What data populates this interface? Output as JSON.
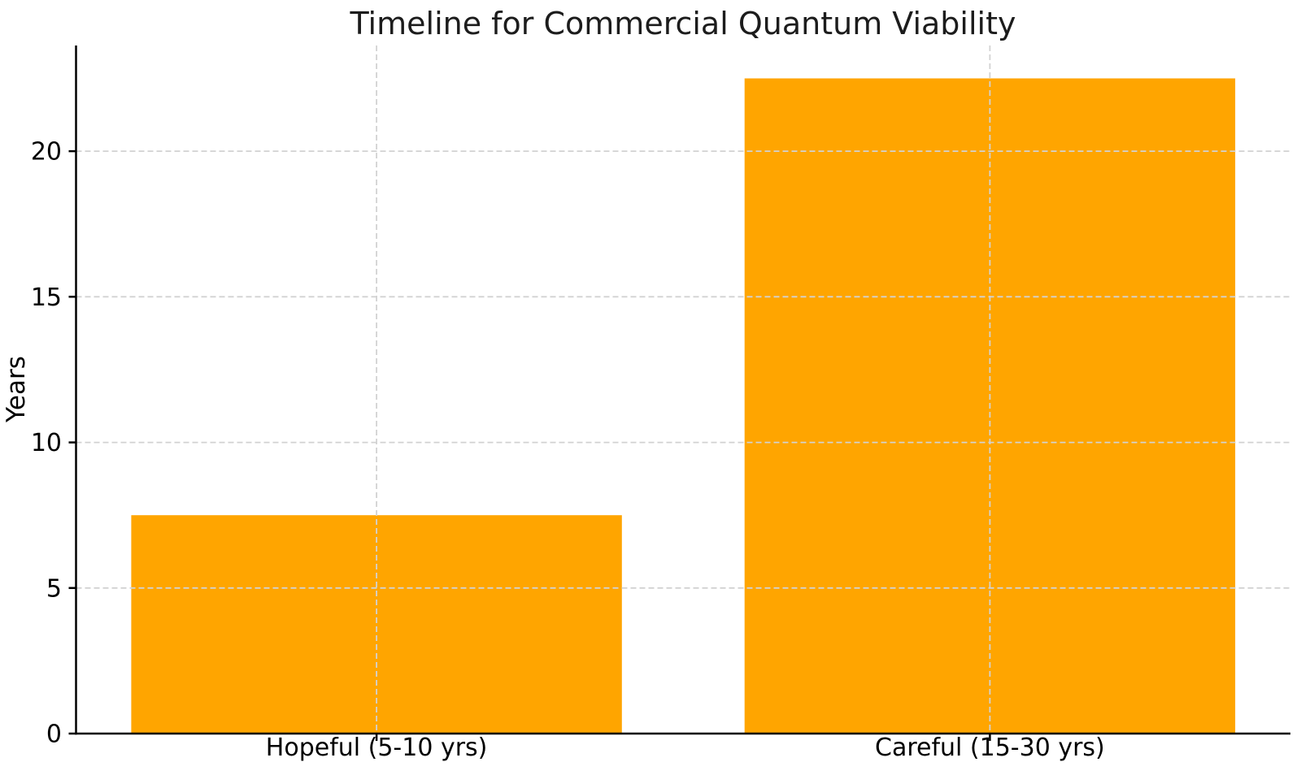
{
  "figure": {
    "background": "#ffffff",
    "title_color": "#1c1c1c",
    "tick_color": "#000000"
  },
  "chart_data": {
    "type": "bar",
    "title": "Timeline for Commercial Quantum Viability",
    "xlabel": "",
    "ylabel": "Years",
    "categories": [
      "Hopeful (5-10 yrs)",
      "Careful (15-30 yrs)"
    ],
    "values": [
      7.5,
      22.5
    ],
    "bar_color": "#FFA500",
    "bar_width": 0.8,
    "yticks": [
      0,
      5,
      10,
      15,
      20
    ],
    "ylim": [
      0,
      23.63
    ],
    "xlim": [
      -0.49,
      1.49
    ],
    "grid": {
      "visible": true,
      "linestyle": "dashed",
      "color": "#d2d2d2",
      "which": "both",
      "drawn_over_bars": true
    },
    "spine_color": "#000000",
    "spines_visible": [
      "left",
      "bottom"
    ],
    "legend": {
      "visible": false
    }
  }
}
